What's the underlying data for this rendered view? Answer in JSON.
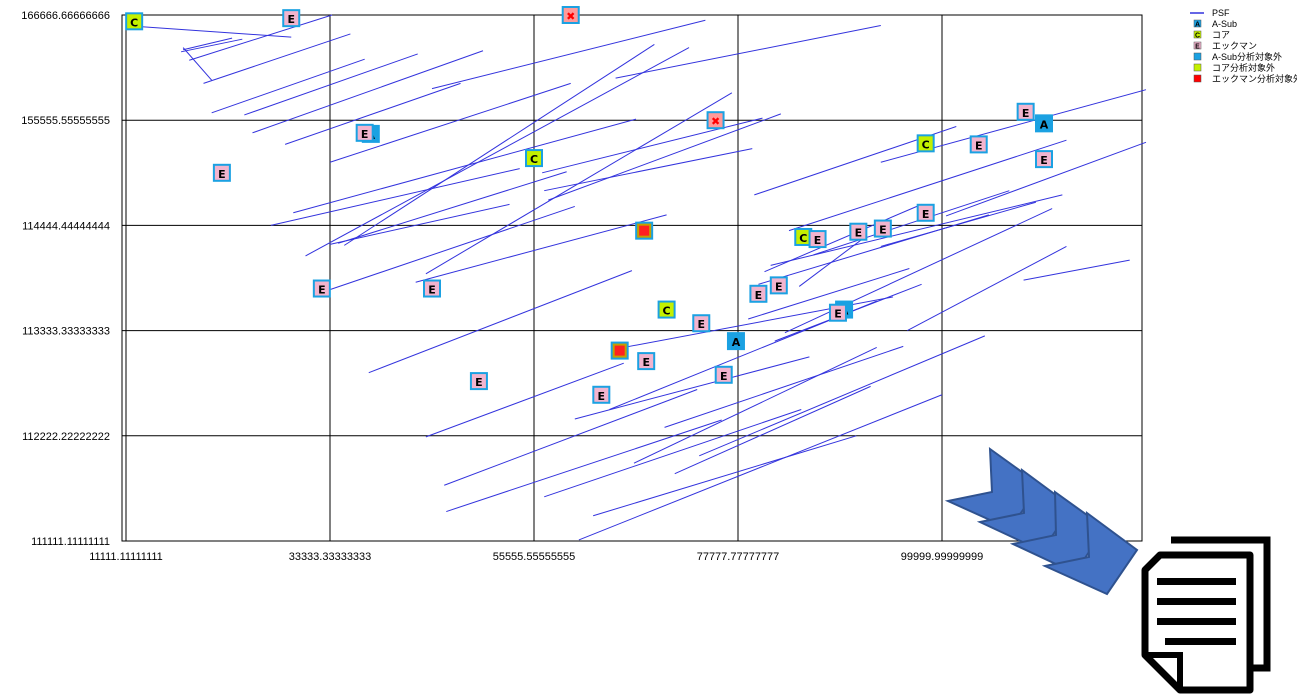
{
  "chart_data": {
    "type": "scatter",
    "title": "",
    "xlabel": "",
    "ylabel": "",
    "xlim": [
      1,
      5.02
    ],
    "ylim": [
      1,
      6
    ],
    "grid": true,
    "legend_position": "top-right",
    "x_ticks": [
      {
        "v": 1,
        "label": "11111.11111111"
      },
      {
        "v": 2,
        "label": "33333.33333333"
      },
      {
        "v": 3,
        "label": "55555.55555555"
      },
      {
        "v": 4,
        "label": "77777.77777777"
      },
      {
        "v": 5,
        "label": "99999.99999999"
      }
    ],
    "y_ticks": [
      {
        "v": 1,
        "label": "111111.11111111"
      },
      {
        "v": 2,
        "label": "112222.22222222"
      },
      {
        "v": 3,
        "label": "113333.33333333"
      },
      {
        "v": 4,
        "label": "114444.44444444"
      },
      {
        "v": 5,
        "label": "155555.55555555"
      },
      {
        "v": 6,
        "label": "166666.66666666"
      }
    ],
    "series": [
      {
        "name": "PSF",
        "kind": "line",
        "color": "#3333dd",
        "segments": [
          [
            [
              1.07,
              5.89
            ],
            [
              1.81,
              5.79
            ]
          ],
          [
            [
              1.27,
              5.65
            ],
            [
              1.57,
              5.77
            ]
          ],
          [
            [
              1.28,
              5.67
            ],
            [
              1.52,
              5.78
            ]
          ],
          [
            [
              1.28,
              5.69
            ],
            [
              1.42,
              5.38
            ]
          ],
          [
            [
              1.31,
              5.57
            ],
            [
              2.01,
              6.0
            ]
          ],
          [
            [
              1.38,
              5.35
            ],
            [
              2.1,
              5.82
            ]
          ],
          [
            [
              1.42,
              5.07
            ],
            [
              2.17,
              5.58
            ]
          ],
          [
            [
              1.58,
              5.05
            ],
            [
              2.43,
              5.63
            ]
          ],
          [
            [
              1.62,
              4.88
            ],
            [
              2.75,
              5.66
            ]
          ],
          [
            [
              1.71,
              4.0
            ],
            [
              2.93,
              4.54
            ]
          ],
          [
            [
              1.78,
              4.77
            ],
            [
              2.64,
              5.35
            ]
          ],
          [
            [
              1.82,
              4.12
            ],
            [
              3.5,
              5.01
            ]
          ],
          [
            [
              1.88,
              3.71
            ],
            [
              3.76,
              5.69
            ]
          ],
          [
            [
              1.94,
              3.35
            ],
            [
              3.2,
              4.18
            ]
          ],
          [
            [
              2.0,
              4.6
            ],
            [
              3.18,
              5.35
            ]
          ],
          [
            [
              2.04,
              3.83
            ],
            [
              3.16,
              4.51
            ]
          ],
          [
            [
              2.07,
              3.81
            ],
            [
              3.59,
              5.72
            ]
          ],
          [
            [
              2.0,
              3.82
            ],
            [
              2.88,
              4.2
            ]
          ],
          [
            [
              2.47,
              3.54
            ],
            [
              3.97,
              5.26
            ]
          ],
          [
            [
              2.19,
              2.6
            ],
            [
              3.48,
              3.57
            ]
          ],
          [
            [
              2.42,
              3.46
            ],
            [
              3.65,
              4.1
            ]
          ],
          [
            [
              2.5,
              5.3
            ],
            [
              3.84,
              5.95
            ]
          ],
          [
            [
              2.47,
              1.99
            ],
            [
              3.44,
              2.69
            ]
          ],
          [
            [
              2.57,
              1.28
            ],
            [
              3.92,
              2.15
            ]
          ],
          [
            [
              2.56,
              1.53
            ],
            [
              3.8,
              2.44
            ]
          ],
          [
            [
              3.04,
              4.5
            ],
            [
              4.12,
              5.02
            ]
          ],
          [
            [
              3.05,
              4.33
            ],
            [
              4.07,
              4.73
            ]
          ],
          [
            [
              3.07,
              4.24
            ],
            [
              4.21,
              5.06
            ]
          ],
          [
            [
              3.05,
              1.42
            ],
            [
              4.31,
              2.25
            ]
          ],
          [
            [
              3.2,
              2.16
            ],
            [
              4.35,
              2.75
            ]
          ],
          [
            [
              3.29,
              1.24
            ],
            [
              4.58,
              2.0
            ]
          ],
          [
            [
              3.37,
              2.25
            ],
            [
              4.68,
              3.28
            ]
          ],
          [
            [
              3.4,
              5.4
            ],
            [
              4.7,
              5.9
            ]
          ],
          [
            [
              3.22,
              1.01
            ],
            [
              5.0,
              2.39
            ]
          ],
          [
            [
              3.44,
              2.84
            ],
            [
              4.76,
              3.32
            ]
          ],
          [
            [
              3.64,
              2.08
            ],
            [
              4.81,
              2.85
            ]
          ],
          [
            [
              3.69,
              1.64
            ],
            [
              4.65,
              2.47
            ]
          ],
          [
            [
              3.49,
              1.74
            ],
            [
              4.68,
              2.84
            ]
          ],
          [
            [
              3.81,
              1.81
            ],
            [
              5.21,
              2.95
            ]
          ],
          [
            [
              4.13,
              3.56
            ],
            [
              4.9,
              4.2
            ]
          ],
          [
            [
              4.05,
              3.11
            ],
            [
              4.84,
              3.59
            ]
          ],
          [
            [
              4.18,
              2.9
            ],
            [
              4.9,
              3.44
            ]
          ],
          [
            [
              4.23,
              2.98
            ],
            [
              5.54,
              4.16
            ]
          ],
          [
            [
              4.08,
              4.29
            ],
            [
              5.07,
              4.94
            ]
          ],
          [
            [
              4.1,
              3.44
            ],
            [
              5.23,
              4.1
            ]
          ],
          [
            [
              4.16,
              3.62
            ],
            [
              5.59,
              4.29
            ]
          ],
          [
            [
              4.3,
              3.42
            ],
            [
              4.63,
              3.9
            ]
          ],
          [
            [
              4.37,
              3.72
            ],
            [
              5.33,
              4.33
            ]
          ],
          [
            [
              4.25,
              3.95
            ],
            [
              5.61,
              4.81
            ]
          ],
          [
            [
              4.83,
              3.0
            ],
            [
              5.61,
              3.8
            ]
          ],
          [
            [
              4.7,
              4.6
            ],
            [
              6.0,
              5.29
            ]
          ],
          [
            [
              5.02,
              4.09
            ],
            [
              6.0,
              4.79
            ]
          ],
          [
            [
              4.7,
              3.8
            ],
            [
              5.46,
              4.22
            ]
          ],
          [
            [
              5.4,
              3.48
            ],
            [
              5.92,
              3.67
            ]
          ]
        ]
      },
      {
        "name": "A-Sub",
        "symbol": "A",
        "color": "#1ba1e2",
        "points": [
          [
            2.2,
            4.87
          ],
          [
            5.5,
            4.97
          ],
          [
            3.99,
            2.9
          ],
          [
            4.52,
            3.2
          ]
        ]
      },
      {
        "name": "コア",
        "symbol": "C",
        "color": "#c4f000",
        "points": [
          [
            1.04,
            5.94
          ],
          [
            3.0,
            4.64
          ],
          [
            4.92,
            4.78
          ],
          [
            4.32,
            3.89
          ],
          [
            3.65,
            3.2
          ]
        ]
      },
      {
        "name": "エックマン",
        "symbol": "E",
        "color": "#f2b4ce",
        "points": [
          [
            1.81,
            5.97
          ],
          [
            2.17,
            4.88
          ],
          [
            1.47,
            4.5
          ],
          [
            1.96,
            3.4
          ],
          [
            2.5,
            3.4
          ],
          [
            2.73,
            2.52
          ],
          [
            3.33,
            2.39
          ],
          [
            3.93,
            2.58
          ],
          [
            3.82,
            3.07
          ],
          [
            4.2,
            3.43
          ],
          [
            4.39,
            3.87
          ],
          [
            4.59,
            3.94
          ],
          [
            4.71,
            3.97
          ],
          [
            4.92,
            4.12
          ],
          [
            5.18,
            4.77
          ],
          [
            5.41,
            5.08
          ],
          [
            3.55,
            2.71
          ],
          [
            4.49,
            3.17
          ],
          [
            4.1,
            3.35
          ],
          [
            5.5,
            4.63
          ]
        ]
      },
      {
        "name": "A-Sub分析対象外",
        "symbol": "■",
        "color": "#1ba1e2",
        "points": []
      },
      {
        "name": "コア分析対象外",
        "symbol": "■",
        "color": "#c4f000",
        "points": [
          [
            3.54,
            3.95
          ],
          [
            3.42,
            2.81
          ]
        ]
      },
      {
        "name": "エックマン分析対象外",
        "symbol": "✖",
        "color": "#ff0000",
        "points": [
          [
            3.18,
            6.0
          ],
          [
            3.89,
            5.0
          ]
        ]
      }
    ]
  }
}
